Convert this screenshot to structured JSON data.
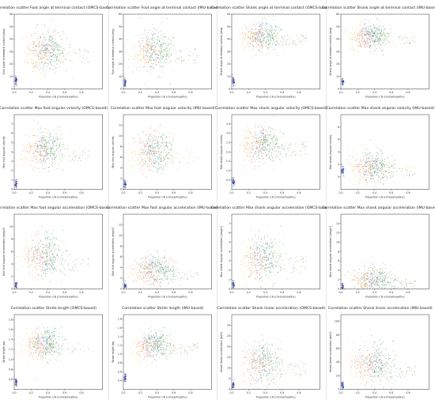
{
  "figure": {
    "layout": {
      "rows": 4,
      "cols": 4
    },
    "colors": [
      "#f2c94c",
      "#e07bb5",
      "#3fb8c7",
      "#2c8a83",
      "#8e6bc2",
      "#e8845c",
      "#2f3fa8",
      "#a6c96a"
    ]
  },
  "chart_data": [
    {
      "type": "scatter",
      "title": "Correlation scatter Foot angle at terminal contact (OMCS-based)",
      "xlabel": "Proportion CN (clinical/healthy)",
      "ylabel": "Foot angle at terminal contact (deg)",
      "xlim": [
        0,
        1.0
      ],
      "ylim": [
        0,
        60
      ],
      "xticks": [
        "0.0",
        "0.2",
        "0.4",
        "0.6",
        "0.8"
      ],
      "yticks": [
        "0",
        "10",
        "20",
        "30",
        "40",
        "50",
        "60"
      ],
      "cluster": {
        "cx": 0.35,
        "cy": 30,
        "sx": 0.12,
        "sy": 10
      },
      "low_group": {
        "x": 0.02,
        "y": 7
      }
    },
    {
      "type": "scatter",
      "title": "Correlation scatter Foot angle at terminal contact (IMU-based)",
      "xlabel": "Proportion CN (clinical/healthy)",
      "ylabel": "Foot angle at terminal contact (deg)",
      "xlim": [
        0,
        1.0
      ],
      "ylim": [
        0,
        60
      ],
      "xticks": [
        "0.0",
        "0.2",
        "0.4",
        "0.6",
        "0.8"
      ],
      "yticks": [
        "0",
        "10",
        "20",
        "30",
        "40",
        "50",
        "60"
      ],
      "cluster": {
        "cx": 0.33,
        "cy": 30,
        "sx": 0.11,
        "sy": 10
      },
      "low_group": {
        "x": 0.02,
        "y": 5
      }
    },
    {
      "type": "scatter",
      "title": "Correlation scatter Shank angle at terminal contact (OMCS-based)",
      "xlabel": "Proportion CN (clinical/healthy)",
      "ylabel": "Shank angle at terminal contact (deg)",
      "xlim": [
        0,
        1.0
      ],
      "ylim": [
        0,
        60
      ],
      "xticks": [
        "0.0",
        "0.2",
        "0.4",
        "0.6",
        "0.8"
      ],
      "yticks": [
        "0",
        "10",
        "20",
        "30",
        "40",
        "50",
        "60"
      ],
      "cluster": {
        "cx": 0.33,
        "cy": 42,
        "sx": 0.1,
        "sy": 7
      },
      "low_group": {
        "x": 0.02,
        "y": 6
      }
    },
    {
      "type": "scatter",
      "title": "Correlation scatter Shank angle at terminal contact (IMU-based)",
      "xlabel": "Proportion CN (clinical/healthy)",
      "ylabel": "Shank angle at terminal contact (deg)",
      "xlim": [
        0,
        1.0
      ],
      "ylim": [
        0,
        60
      ],
      "xticks": [
        "0.0",
        "0.2",
        "0.4",
        "0.6",
        "0.8"
      ],
      "yticks": [
        "0",
        "10",
        "20",
        "30",
        "40",
        "50",
        "60"
      ],
      "cluster": {
        "cx": 0.33,
        "cy": 42,
        "sx": 0.1,
        "sy": 6
      },
      "low_group": {
        "x": 0.02,
        "y": 6
      }
    },
    {
      "type": "scatter",
      "title": "Correlation scatter Max foot angular velocity (OMCS-based)",
      "xlabel": "Proportion CN (clinical/healthy)",
      "ylabel": "Max foot angular velocity",
      "xlim": [
        0,
        1.0
      ],
      "ylim": [
        0,
        8
      ],
      "xticks": [
        "0.0",
        "0.2",
        "0.4",
        "0.6",
        "0.8"
      ],
      "yticks": [
        "0",
        "1",
        "2",
        "3",
        "4",
        "5",
        "6",
        "7"
      ],
      "cluster": {
        "cx": 0.33,
        "cy": 4.2,
        "sx": 0.11,
        "sy": 1.2
      },
      "low_group": {
        "x": 0.02,
        "y": 0.6
      }
    },
    {
      "type": "scatter",
      "title": "Correlation scatter Max foot angular velocity (IMU-based)",
      "xlabel": "Proportion CN (clinical/healthy)",
      "ylabel": "Max foot angular velocity",
      "xlim": [
        0,
        1.0
      ],
      "ylim": [
        0,
        14
      ],
      "xticks": [
        "0.0",
        "0.2",
        "0.4",
        "0.6",
        "0.8"
      ],
      "yticks": [
        "0",
        "2",
        "4",
        "6",
        "8",
        "10",
        "12"
      ],
      "cluster": {
        "cx": 0.33,
        "cy": 7,
        "sx": 0.12,
        "sy": 2.3
      },
      "low_group": {
        "x": 0.02,
        "y": 1
      }
    },
    {
      "type": "scatter",
      "title": "Correlation scatter Max shank angular velocity (OMCS-based)",
      "xlabel": "Proportion CN (clinical/healthy)",
      "ylabel": "Max shank angular velocity",
      "xlim": [
        0,
        1.0
      ],
      "ylim": [
        0,
        4
      ],
      "xticks": [
        "0.0",
        "0.2",
        "0.4",
        "0.6",
        "0.8"
      ],
      "yticks": [
        "0.5",
        "1.0",
        "1.5",
        "2.0",
        "2.5",
        "3.0",
        "3.5"
      ],
      "cluster": {
        "cx": 0.33,
        "cy": 2.4,
        "sx": 0.11,
        "sy": 0.6
      },
      "low_group": {
        "x": 0.02,
        "y": 0.4
      }
    },
    {
      "type": "scatter",
      "title": "Correlation scatter Max shank angular velocity (IMU-based)",
      "xlabel": "Proportion CN (clinical/healthy)",
      "ylabel": "Max shank angular velocity",
      "xlim": [
        0,
        1.0
      ],
      "ylim": [
        -2,
        10
      ],
      "xticks": [
        "0.0",
        "0.2",
        "0.4",
        "0.6",
        "0.8"
      ],
      "yticks": [
        "0",
        "2",
        "4",
        "6",
        "8"
      ],
      "cluster": {
        "cx": 0.35,
        "cy": 1.5,
        "sx": 0.13,
        "sy": 1.5
      },
      "low_group": {
        "x": 0.02,
        "y": 1
      }
    },
    {
      "type": "scatter",
      "title": "Correlation scatter Max foot angular acceleration (OMCS-based)",
      "xlabel": "Proportion CN (clinical/healthy)",
      "ylabel": "Max foot angular acceleration (deg/s²)",
      "xlim": [
        0,
        1.0
      ],
      "ylim": [
        0,
        12
      ],
      "xticks": [
        "0.0",
        "0.2",
        "0.4",
        "0.6",
        "0.8"
      ],
      "yticks": [
        "0",
        "2",
        "4",
        "6",
        "8",
        "10"
      ],
      "cluster": {
        "cx": 0.33,
        "cy": 5,
        "sx": 0.11,
        "sy": 2.2
      },
      "low_group": {
        "x": 0.02,
        "y": 0.5
      }
    },
    {
      "type": "scatter",
      "title": "Correlation scatter Max foot angular acceleration (IMU-based)",
      "xlabel": "Proportion CN (clinical/healthy)",
      "ylabel": "Max foot angular acceleration (deg/s²)",
      "xlim": [
        0,
        1.0
      ],
      "ylim": [
        0,
        14
      ],
      "xticks": [
        "0.0",
        "0.2",
        "0.4",
        "0.6",
        "0.8"
      ],
      "yticks": [
        "0",
        "2",
        "4",
        "6",
        "8",
        "10",
        "12"
      ],
      "cluster": {
        "cx": 0.34,
        "cy": 3.5,
        "sx": 0.13,
        "sy": 1.8
      },
      "low_group": {
        "x": 0.02,
        "y": 0.6
      }
    },
    {
      "type": "scatter",
      "title": "Correlation scatter Max shank angular acceleration (OMCS-based)",
      "xlabel": "Proportion CN (clinical/healthy)",
      "ylabel": "Max shank angular acceleration (deg/s²)",
      "xlim": [
        0,
        1.0
      ],
      "ylim": [
        0,
        8
      ],
      "xticks": [
        "0.0",
        "0.2",
        "0.4",
        "0.6",
        "0.8"
      ],
      "yticks": [
        "0",
        "1",
        "2",
        "3",
        "4",
        "5",
        "6",
        "7"
      ],
      "cluster": {
        "cx": 0.33,
        "cy": 3.2,
        "sx": 0.11,
        "sy": 1.5
      },
      "low_group": {
        "x": 0.02,
        "y": 0.4
      }
    },
    {
      "type": "scatter",
      "title": "Correlation scatter Max shank angular acceleration (IMU-based)",
      "xlabel": "Proportion CN (clinical/healthy)",
      "ylabel": "Max shank angular acceleration (deg/s²)",
      "xlim": [
        0,
        1.0
      ],
      "ylim": [
        0,
        16
      ],
      "xticks": [
        "0.0",
        "0.2",
        "0.4",
        "0.6",
        "0.8"
      ],
      "yticks": [
        "0",
        "2",
        "4",
        "6",
        "8",
        "10",
        "12",
        "14"
      ],
      "cluster": {
        "cx": 0.36,
        "cy": 1.8,
        "sx": 0.14,
        "sy": 1.6
      },
      "low_group": {
        "x": 0.02,
        "y": 0.4
      }
    },
    {
      "type": "scatter",
      "title": "Correlation scatter Stride length (OMCS-based)",
      "xlabel": "Proportion CN (clinical/healthy)",
      "ylabel": "Stride length (m)",
      "xlim": [
        0,
        1.0
      ],
      "ylim": [
        0.4,
        1.9
      ],
      "xticks": [
        "0.0",
        "0.2",
        "0.4",
        "0.6",
        "0.8"
      ],
      "yticks": [
        "0.6",
        "0.8",
        "1.0",
        "1.2",
        "1.4",
        "1.6",
        "1.8"
      ],
      "cluster": {
        "cx": 0.33,
        "cy": 1.3,
        "sx": 0.1,
        "sy": 0.18
      },
      "low_group": {
        "x": 0.02,
        "y": 0.55
      }
    },
    {
      "type": "scatter",
      "title": "Correlation scatter Stride length (IMU-based)",
      "xlabel": "Proportion CN (clinical/healthy)",
      "ylabel": "Stride length (m)",
      "xlim": [
        0,
        1.0
      ],
      "ylim": [
        0.2,
        1.9
      ],
      "xticks": [
        "0.0",
        "0.2",
        "0.4",
        "0.6",
        "0.8"
      ],
      "yticks": [
        "0.4",
        "0.6",
        "0.8",
        "1.0",
        "1.2",
        "1.4",
        "1.6",
        "1.8"
      ],
      "cluster": {
        "cx": 0.33,
        "cy": 1.2,
        "sx": 0.1,
        "sy": 0.2
      },
      "low_group": {
        "x": 0.02,
        "y": 0.45
      }
    },
    {
      "type": "scatter",
      "title": "Correlation scatter Shank linear acceleration (OMCS-based)",
      "xlabel": "Proportion CN (clinical/healthy)",
      "ylabel": "Shank linear acceleration (m/s²)",
      "xlim": [
        0,
        1.0
      ],
      "ylim": [
        0,
        35
      ],
      "xticks": [
        "0.0",
        "0.2",
        "0.4",
        "0.6",
        "0.8"
      ],
      "yticks": [
        "0",
        "5",
        "10",
        "15",
        "20",
        "25",
        "30"
      ],
      "cluster": {
        "cx": 0.33,
        "cy": 12,
        "sx": 0.12,
        "sy": 6
      },
      "low_group": {
        "x": 0.02,
        "y": 2
      }
    },
    {
      "type": "scatter",
      "title": "Correlation scatter Shank linear acceleration (IMU-based)",
      "xlabel": "Proportion CN (clinical/healthy)",
      "ylabel": "Shank linear acceleration (m/s²)",
      "xlim": [
        0,
        1.0
      ],
      "ylim": [
        0,
        110
      ],
      "xticks": [
        "0.0",
        "0.2",
        "0.4",
        "0.6",
        "0.8"
      ],
      "yticks": [
        "0",
        "20",
        "40",
        "60",
        "80",
        "100"
      ],
      "cluster": {
        "cx": 0.35,
        "cy": 35,
        "sx": 0.13,
        "sy": 18
      },
      "low_group": {
        "x": 0.02,
        "y": 6
      }
    }
  ]
}
